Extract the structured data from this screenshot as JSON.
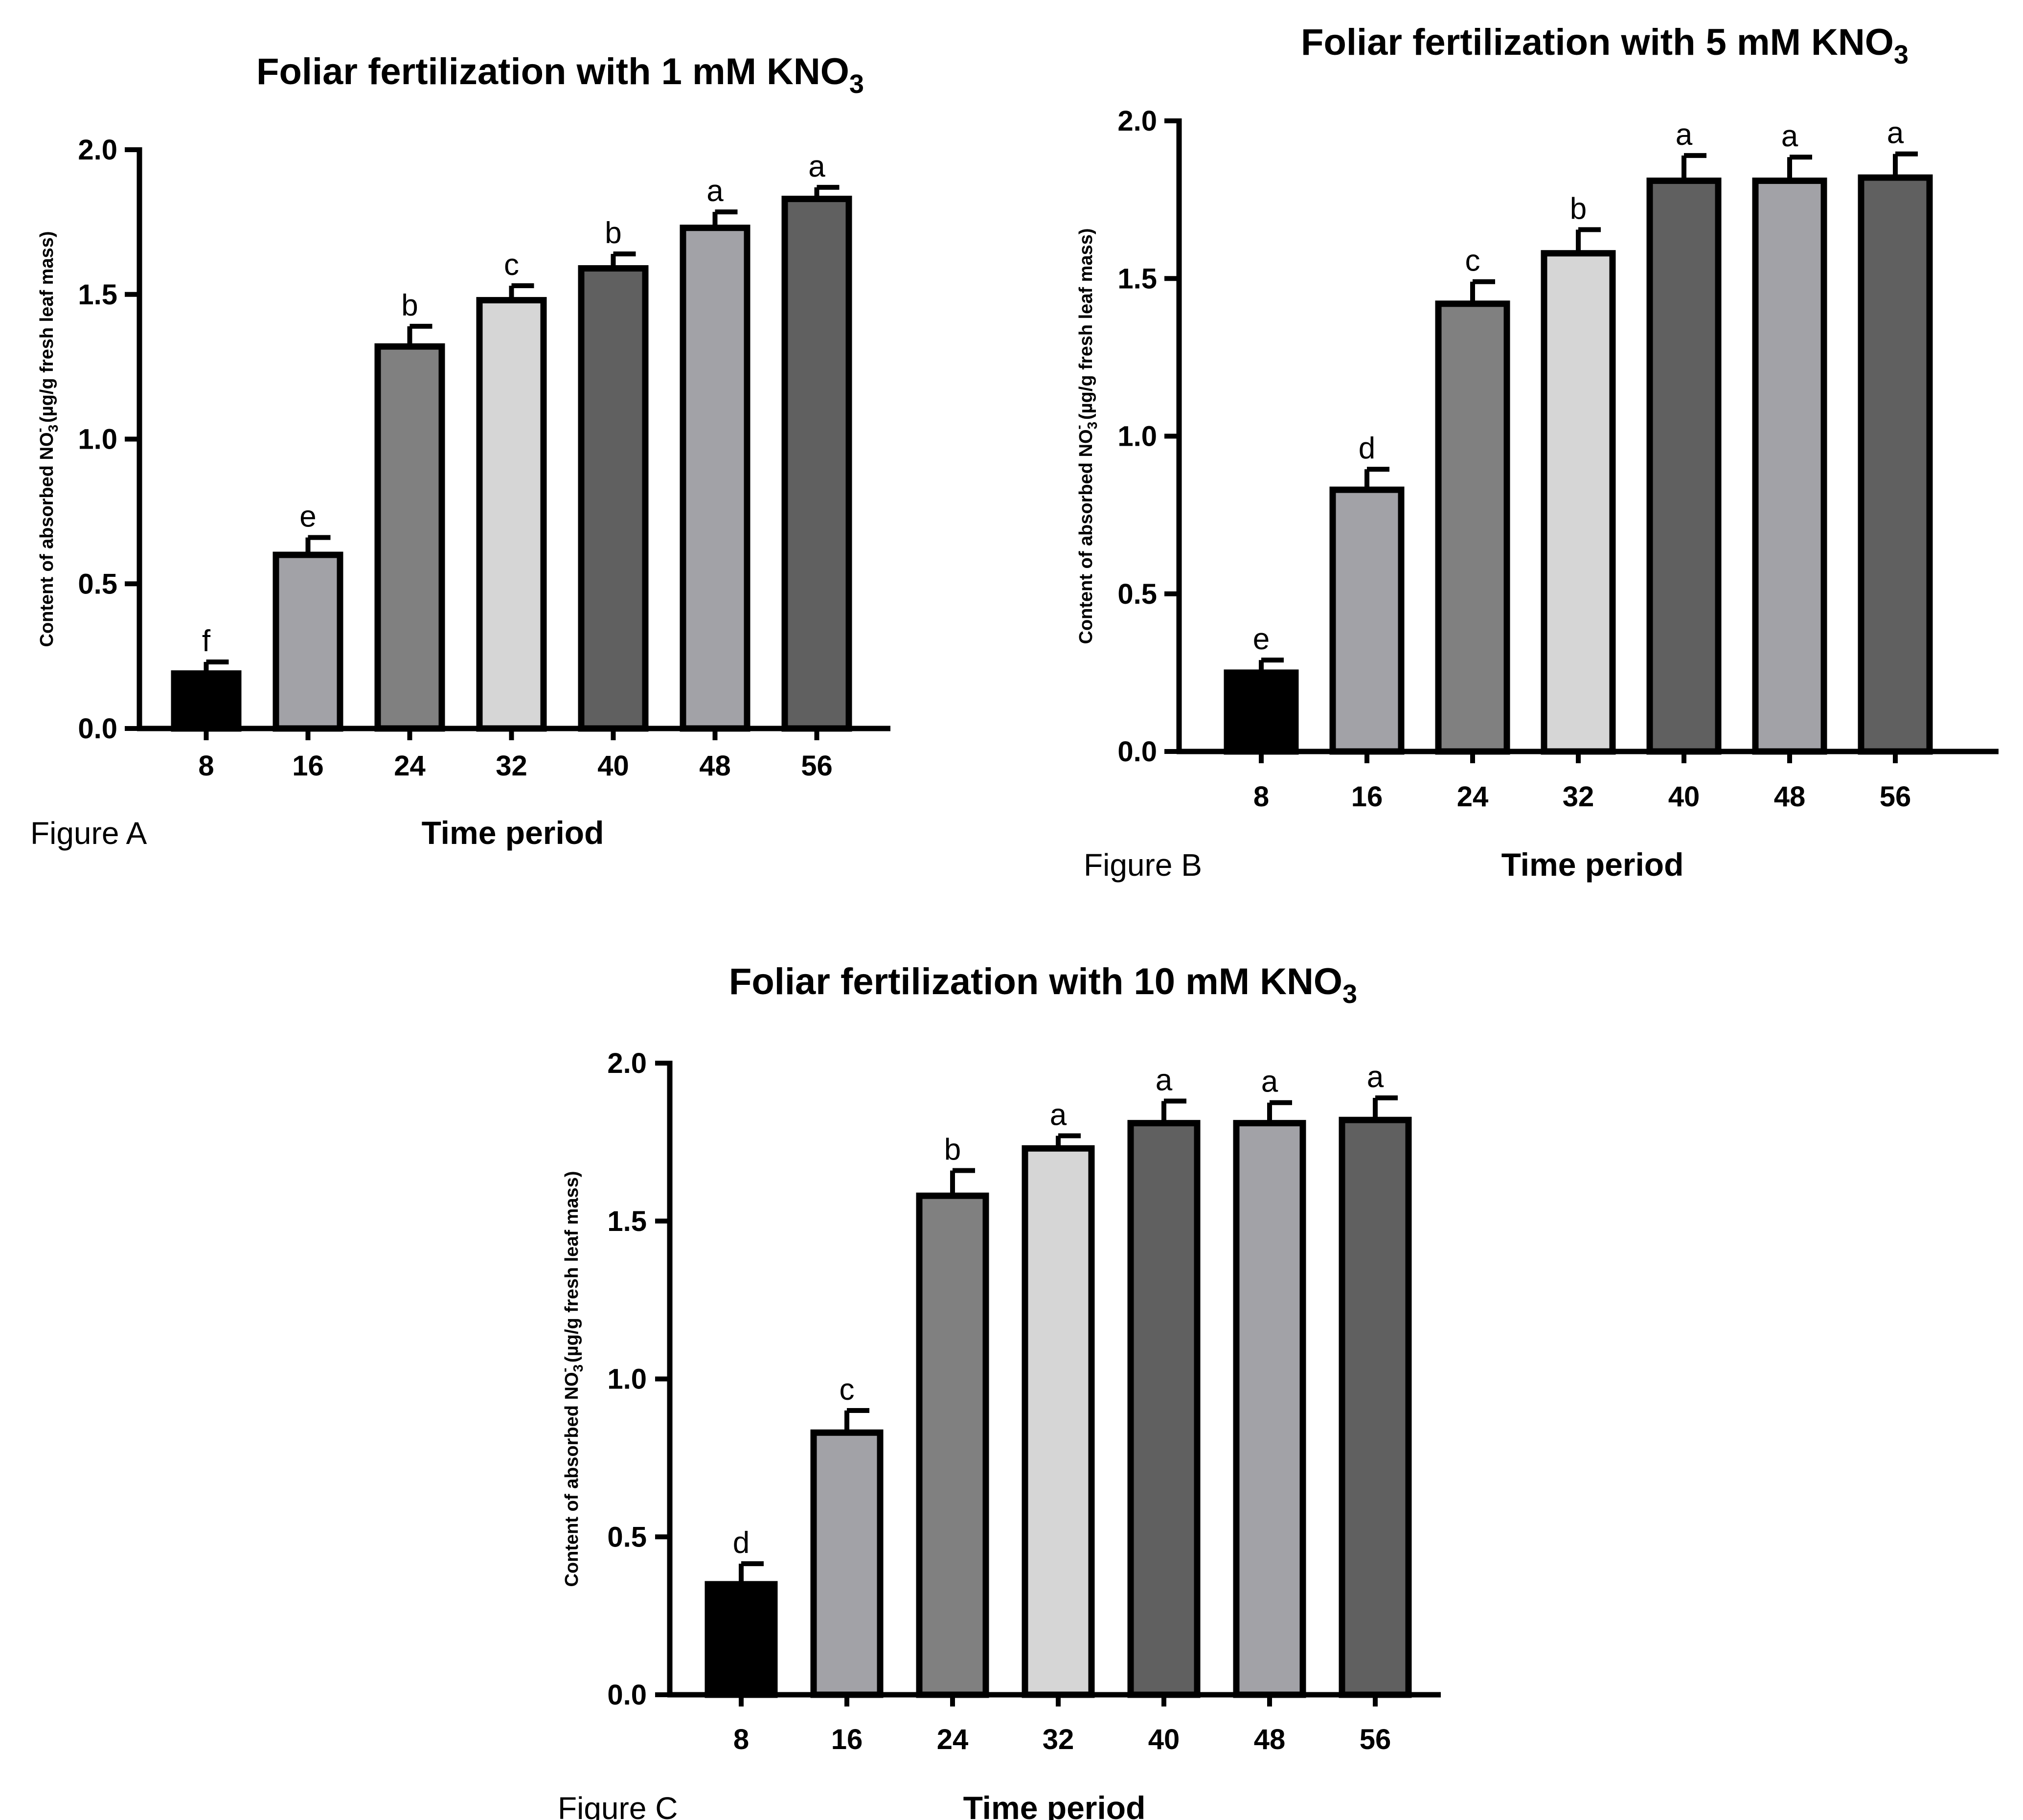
{
  "chart_data": [
    {
      "type": "bar",
      "figure_label": "Figure A",
      "title": "Foliar fertilization with 1 mM KNO",
      "title_subscript": "3",
      "xlabel": "Time period",
      "ylabel": {
        "text_before": "Content of absorbed NO",
        "subscript": "3",
        "superscript": "-",
        "text_after": " (µg/g fresh leaf mass)"
      },
      "ylim": [
        0,
        2.0
      ],
      "yticks": [
        "0.0",
        "0.5",
        "1.0",
        "1.5",
        "2.0"
      ],
      "categories": [
        "8",
        "16",
        "24",
        "32",
        "40",
        "48",
        "56"
      ],
      "values": [
        0.19,
        0.6,
        1.32,
        1.48,
        1.59,
        1.73,
        1.83
      ],
      "errors": [
        0.04,
        0.06,
        0.07,
        0.05,
        0.05,
        0.055,
        0.04
      ],
      "significance": [
        "f",
        "e",
        "b",
        "c",
        "b",
        "a",
        "a"
      ],
      "bar_colors": [
        "#000000",
        "#a2a2a7",
        "#808080",
        "#d6d6d6",
        "#606060",
        "#a2a2a7",
        "#606060"
      ]
    },
    {
      "type": "bar",
      "figure_label": "Figure B",
      "title": "Foliar fertilization with 5 mM KNO",
      "title_subscript": "3",
      "xlabel": "Time period",
      "ylabel": {
        "text_before": "Content of absorbed NO",
        "subscript": "3",
        "superscript": "-",
        "text_after": " (µg/g fresh leaf mass)"
      },
      "ylim": [
        0,
        2.0
      ],
      "yticks": [
        "0.0",
        "0.5",
        "1.0",
        "1.5",
        "2.0"
      ],
      "categories": [
        "8",
        "16",
        "24",
        "32",
        "40",
        "48",
        "56"
      ],
      "values": [
        0.25,
        0.83,
        1.42,
        1.58,
        1.81,
        1.81,
        1.82
      ],
      "errors": [
        0.04,
        0.065,
        0.07,
        0.075,
        0.08,
        0.075,
        0.075
      ],
      "significance": [
        "e",
        "d",
        "c",
        "b",
        "a",
        "a",
        "a"
      ],
      "bar_colors": [
        "#000000",
        "#a2a2a7",
        "#808080",
        "#d6d6d6",
        "#606060",
        "#a2a2a7",
        "#606060"
      ]
    },
    {
      "type": "bar",
      "figure_label": "Figure C",
      "title": "Foliar fertilization with 10 mM KNO",
      "title_subscript": "3",
      "xlabel": "Time period",
      "ylabel": {
        "text_before": "Content of absorbed NO",
        "subscript": "3",
        "superscript": "-",
        "text_after": " (µg/g fresh leaf mass)"
      },
      "ylim": [
        0,
        2.0
      ],
      "yticks": [
        "0.0",
        "0.5",
        "1.0",
        "1.5",
        "2.0"
      ],
      "categories": [
        "8",
        "16",
        "24",
        "32",
        "40",
        "48",
        "56"
      ],
      "values": [
        0.35,
        0.83,
        1.58,
        1.73,
        1.81,
        1.81,
        1.82
      ],
      "errors": [
        0.065,
        0.07,
        0.08,
        0.04,
        0.07,
        0.065,
        0.07
      ],
      "significance": [
        "d",
        "c",
        "b",
        "a",
        "a",
        "a",
        "a"
      ],
      "bar_colors": [
        "#000000",
        "#a2a2a7",
        "#808080",
        "#d6d6d6",
        "#606060",
        "#a2a2a7",
        "#606060"
      ]
    }
  ]
}
